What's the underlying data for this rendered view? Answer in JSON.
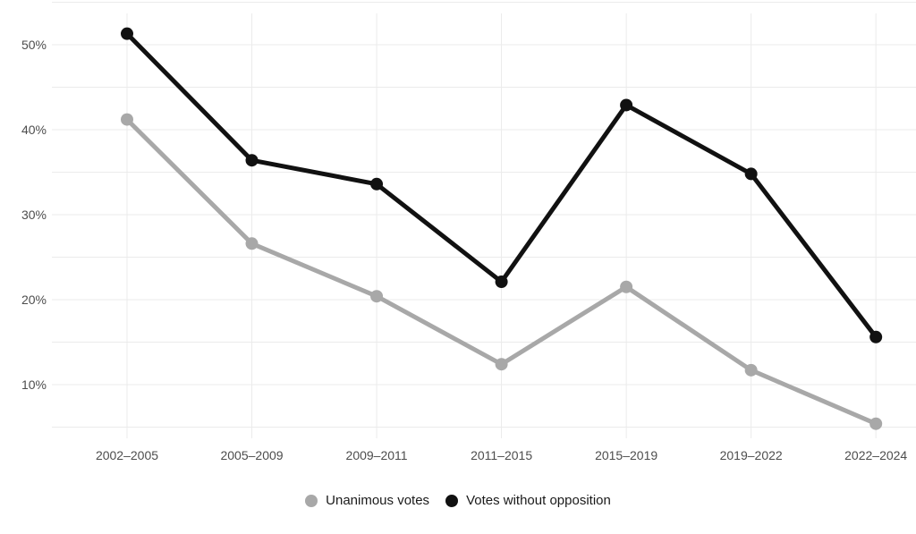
{
  "chart_data": {
    "type": "line",
    "title": "",
    "xlabel": "",
    "ylabel": "",
    "categories": [
      "2002–2005",
      "2005–2009",
      "2009–2011",
      "2011–2015",
      "2015–2019",
      "2019–2022",
      "2022–2024"
    ],
    "series": [
      {
        "name": "Unanimous votes",
        "color": "#a8a8a8",
        "values": [
          41.2,
          26.6,
          20.4,
          12.4,
          21.5,
          11.7,
          5.4
        ]
      },
      {
        "name": "Votes without opposition",
        "color": "#111111",
        "values": [
          51.3,
          36.4,
          33.6,
          22.1,
          42.9,
          34.8,
          15.6
        ]
      }
    ],
    "y_axis": {
      "tick_values": [
        50,
        40,
        30,
        20,
        10
      ],
      "tick_labels": [
        "50%",
        "40%",
        "30%",
        "20%",
        "10%"
      ],
      "minor_step": 5,
      "range": [
        3,
        55
      ],
      "unit": "%"
    },
    "grid": true,
    "legend_position": "bottom",
    "marker": "circle"
  },
  "style": {
    "background": "#ffffff",
    "grid_color": "#ebebeb",
    "axis_text_color": "#4d4d4d",
    "legend_text_color": "#1a1a1a"
  }
}
